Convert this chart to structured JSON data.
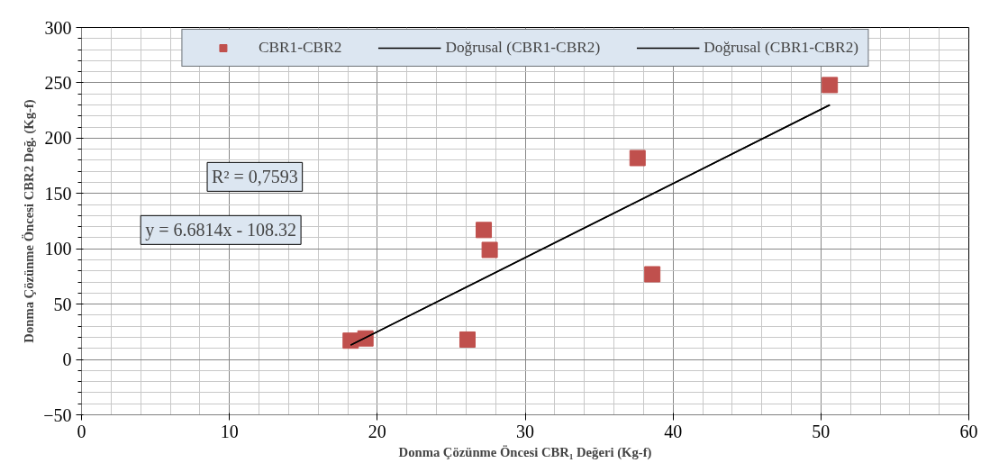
{
  "chart_data": {
    "type": "scatter",
    "xlabel": "Donma Çözünme Öncesi CBR₁ Değeri (Kg-f)",
    "ylabel": "Donma Çözünme Öncesi CBR2 Değ. (Kg-f)",
    "xlim": [
      0,
      60
    ],
    "xticks": [
      0,
      10,
      20,
      30,
      40,
      50,
      60
    ],
    "ylim": [
      -50,
      300
    ],
    "yticks": [
      -50,
      0,
      50,
      100,
      150,
      200,
      250,
      300
    ],
    "grid": true,
    "legend": "top",
    "marker": "square",
    "annotations": [
      "R² = 0,7593",
      "y = 6.6814x - 108.32"
    ],
    "series": [
      {
        "name": "CBR1-CBR2",
        "color": "#c0504d",
        "x": [
          18.2,
          19.2,
          26.1,
          27.2,
          27.6,
          37.6,
          38.6,
          50.6
        ],
        "values": [
          17,
          19,
          18,
          117,
          99,
          182,
          77,
          248
        ]
      },
      {
        "name": "Doğrusal (CBR1-CBR2)",
        "type": "line",
        "marker": "none",
        "color": "#000000",
        "x": [
          18.2,
          50.6
        ],
        "values": [
          13,
          230
        ]
      },
      {
        "name": "Doğrusal (CBR1-CBR2)",
        "type": "line",
        "marker": "none",
        "color": "#000000",
        "x": [
          18.2,
          50.6
        ],
        "values": [
          13,
          230
        ]
      }
    ]
  }
}
